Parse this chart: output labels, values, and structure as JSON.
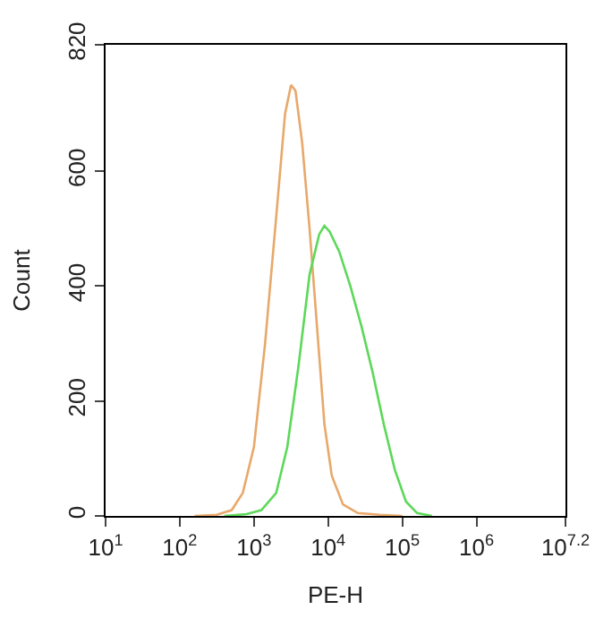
{
  "chart_data": {
    "type": "line",
    "xlabel": "PE-H",
    "ylabel": "Count",
    "log": "x",
    "marker": "none",
    "line_style": "solid",
    "xlim": [
      10,
      15848932
    ],
    "ylim": [
      0,
      820
    ],
    "xticks": [
      {
        "value": 10,
        "label": "10$^{1}$"
      },
      {
        "value": 100,
        "label": "10$^{2}$"
      },
      {
        "value": 1000,
        "label": "10$^{3}$"
      },
      {
        "value": 10000,
        "label": "10$^{4}$"
      },
      {
        "value": 100000,
        "label": "10$^{5}$"
      },
      {
        "value": 1000000,
        "label": "10$^{6}$"
      },
      {
        "value": 15848932,
        "label": "10$^{7.2}$"
      }
    ],
    "yticks": [
      0,
      200,
      400,
      600,
      820
    ],
    "series": [
      {
        "color": "#e8a86a",
        "x": [
          158,
          316,
          501,
          708,
          1000,
          1413,
          1995,
          2630,
          3162,
          3631,
          4467,
          5623,
          7079,
          8913,
          11220,
          15850,
          25120,
          50120,
          100000
        ],
        "values": [
          0,
          2,
          10,
          40,
          120,
          300,
          520,
          700,
          750,
          740,
          650,
          500,
          330,
          160,
          70,
          20,
          5,
          2,
          0
        ]
      },
      {
        "color": "#5dd85a",
        "x": [
          398,
          794,
          1259,
          1995,
          2818,
          3981,
          5623,
          7586,
          8913,
          10470,
          14130,
          19950,
          28180,
          39810,
          56230,
          79430,
          112200,
          158500,
          251200
        ],
        "values": [
          0,
          3,
          10,
          40,
          120,
          260,
          420,
          490,
          505,
          495,
          460,
          400,
          330,
          250,
          160,
          80,
          25,
          5,
          0
        ]
      }
    ]
  }
}
